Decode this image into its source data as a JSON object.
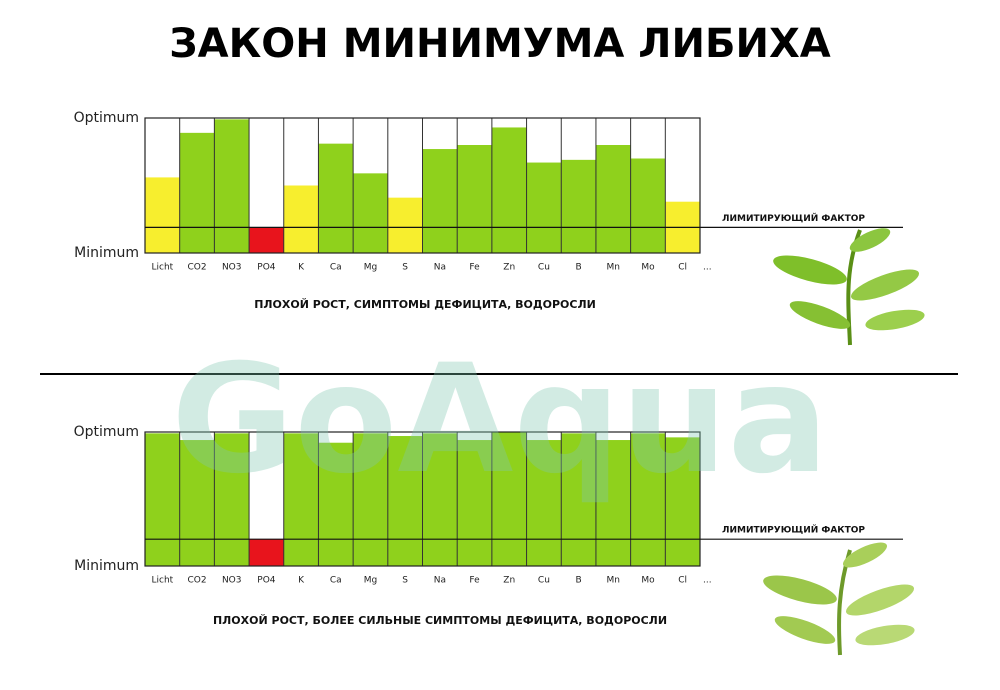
{
  "title": "ЗАКОН МИНИМУМА ЛИБИХА",
  "watermark": "GoAqua",
  "chart_data": [
    {
      "type": "bar",
      "categories": [
        "Licht",
        "CO2",
        "NO3",
        "PO4",
        "K",
        "Ca",
        "Mg",
        "S",
        "Na",
        "Fe",
        "Zn",
        "Cu",
        "B",
        "Mn",
        "Mo",
        "Cl",
        "..."
      ],
      "values": [
        56,
        89,
        99,
        19,
        50,
        81,
        59,
        41,
        77,
        80,
        93,
        67,
        69,
        80,
        70,
        38,
        null
      ],
      "colors": [
        "#f7ee2e",
        "#8fd11c",
        "#8fd11c",
        "#e8141c",
        "#f7ee2e",
        "#8fd11c",
        "#8fd11c",
        "#f7ee2e",
        "#8fd11c",
        "#8fd11c",
        "#8fd11c",
        "#8fd11c",
        "#8fd11c",
        "#8fd11c",
        "#8fd11c",
        "#f7ee2e",
        null
      ],
      "ylim": [
        0,
        100
      ],
      "yticks": [
        {
          "value": 0,
          "label": "Minimum"
        },
        {
          "value": 100,
          "label": "Optimum"
        }
      ],
      "limit_value": 19,
      "annotation": "ЛИМИТИРУЮЩИЙ ФАКТОР",
      "caption": "ПЛОХОЙ РОСТ, СИМПТОМЫ ДЕФИЦИТА, ВОДОРОСЛИ"
    },
    {
      "type": "bar",
      "categories": [
        "Licht",
        "CO2",
        "NO3",
        "PO4",
        "K",
        "Ca",
        "Mg",
        "S",
        "Na",
        "Fe",
        "Zn",
        "Cu",
        "B",
        "Mn",
        "Mo",
        "Cl",
        "..."
      ],
      "values": [
        99,
        94,
        99,
        20,
        99,
        92,
        99,
        97,
        99,
        94,
        100,
        94,
        99,
        94,
        99,
        96,
        null
      ],
      "colors": [
        "#8fd11c",
        "#8fd11c",
        "#8fd11c",
        "#e8141c",
        "#8fd11c",
        "#8fd11c",
        "#8fd11c",
        "#8fd11c",
        "#8fd11c",
        "#8fd11c",
        "#8fd11c",
        "#8fd11c",
        "#8fd11c",
        "#8fd11c",
        "#8fd11c",
        "#8fd11c",
        null
      ],
      "ylim": [
        0,
        100
      ],
      "yticks": [
        {
          "value": 0,
          "label": "Minimum"
        },
        {
          "value": 100,
          "label": "Optimum"
        }
      ],
      "limit_value": 20,
      "annotation": "ЛИМИТИРУЮЩИЙ ФАКТОР",
      "caption": "ПЛОХОЙ РОСТ, БОЛЕЕ СИЛЬНЫЕ СИМПТОМЫ ДЕФИЦИТА, ВОДОРОСЛИ"
    }
  ]
}
